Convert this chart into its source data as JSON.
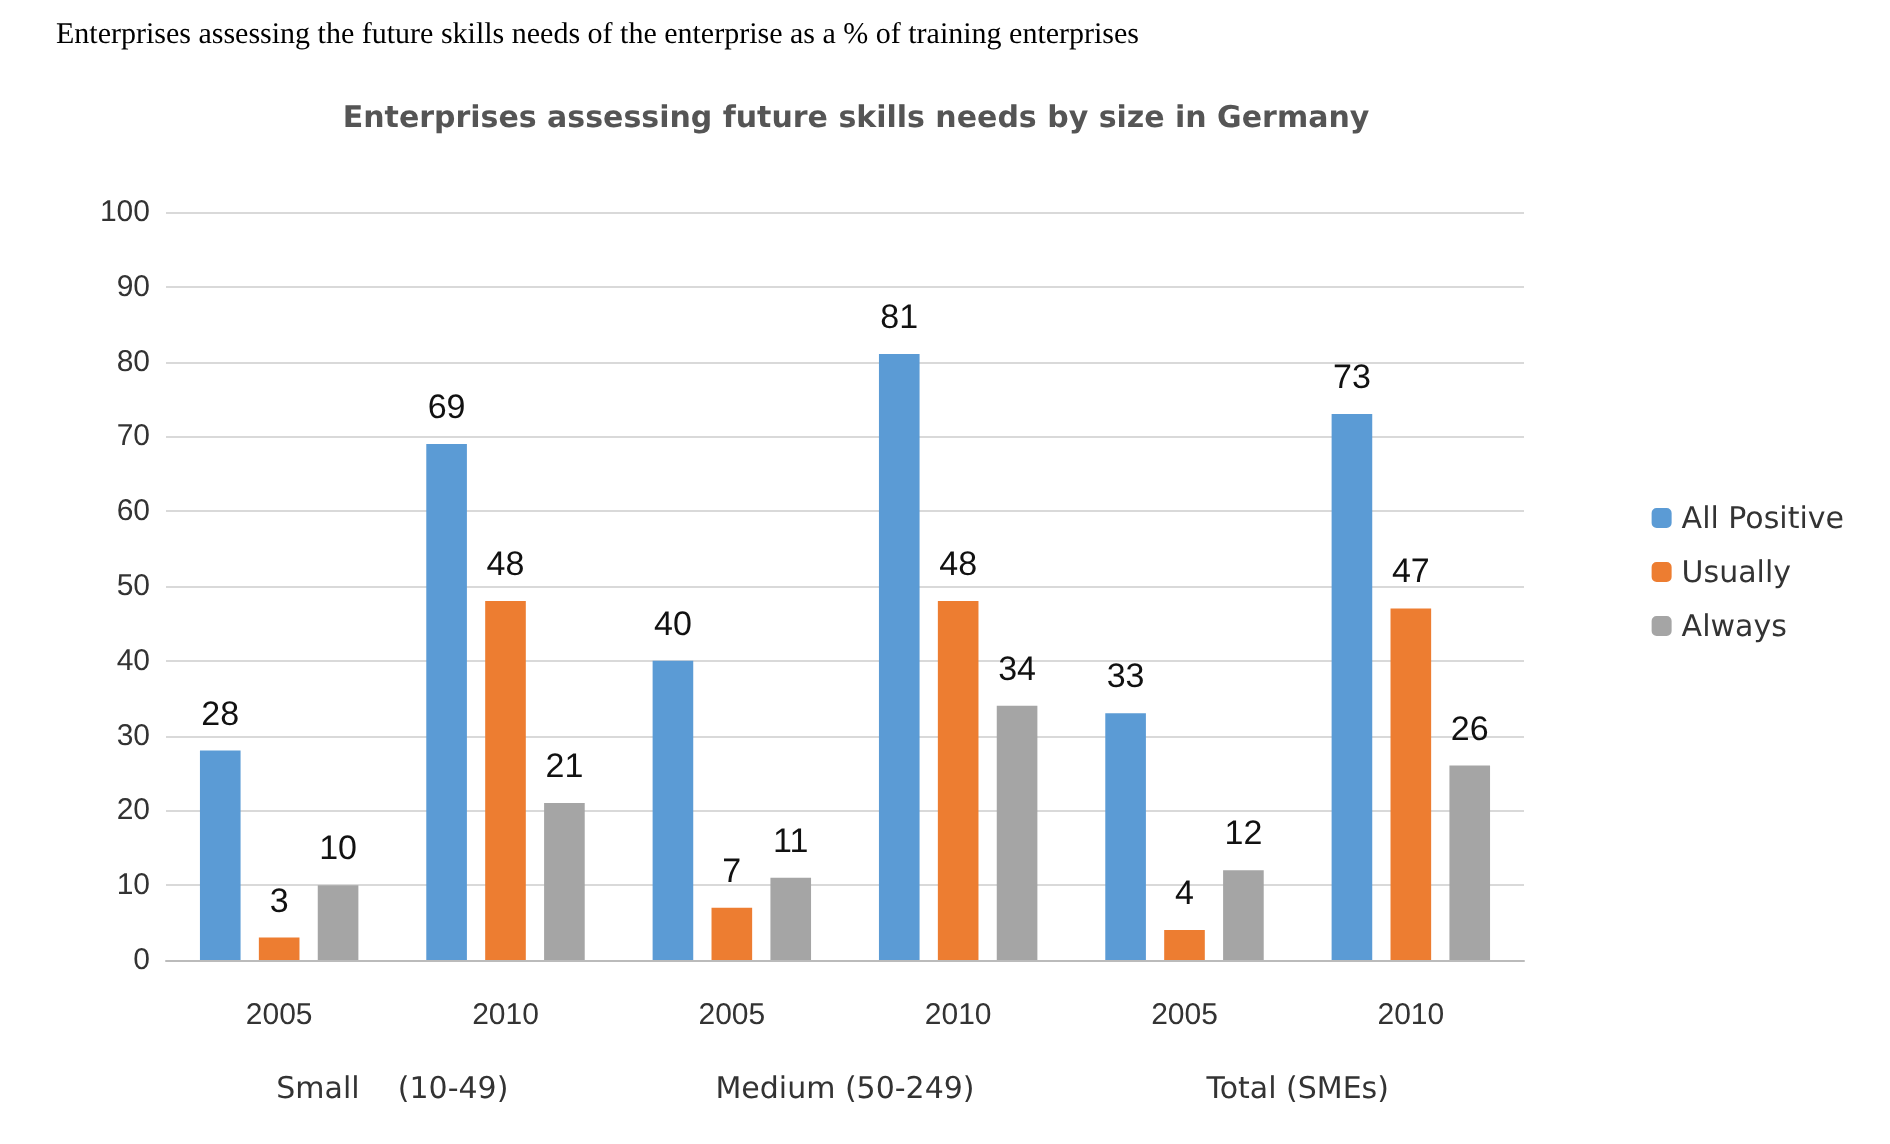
{
  "chart_data": {
    "type": "bar",
    "title": "Enterprises assessing future skills needs by size in Germany",
    "annotations": [
      "Enterprises assessing the future skills needs of the enterprise as a % of training enterprises",
      "Small    (10-49)",
      "Medium (50-249)",
      "Total (SMEs)"
    ],
    "categories": [
      "2005",
      "2010",
      "2005",
      "2010",
      "2005",
      "2010"
    ],
    "series": [
      {
        "name": "All Positive",
        "color": "#5b9bd5",
        "values": [
          28,
          69,
          40,
          81,
          33,
          73
        ]
      },
      {
        "name": "Usually",
        "color": "#ed7d31",
        "values": [
          3,
          48,
          7,
          48,
          4,
          47
        ]
      },
      {
        "name": "Always",
        "color": "#a5a5a5",
        "values": [
          10,
          21,
          11,
          34,
          12,
          26
        ]
      }
    ],
    "ylim": [
      0,
      100
    ],
    "yticks": [
      0,
      10,
      20,
      30,
      40,
      50,
      60,
      70,
      80,
      90,
      100
    ],
    "grid": "y",
    "legend": "right",
    "data_labels": true
  }
}
